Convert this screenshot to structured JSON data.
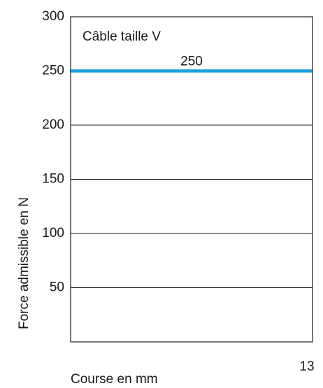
{
  "chart_data": {
    "type": "line",
    "title": "Câble taille V",
    "xlabel": "Course en mm",
    "ylabel": "Force admissible en N",
    "xlim": [
      0,
      13
    ],
    "ylim": [
      0,
      300
    ],
    "x_ticks": [
      "13"
    ],
    "y_ticks": [
      50,
      100,
      150,
      200,
      250,
      300
    ],
    "grid": true,
    "series": [
      {
        "x": [
          0,
          13
        ],
        "values": [
          250,
          250
        ],
        "color": "#1da1e0",
        "data_label": "250"
      }
    ]
  }
}
